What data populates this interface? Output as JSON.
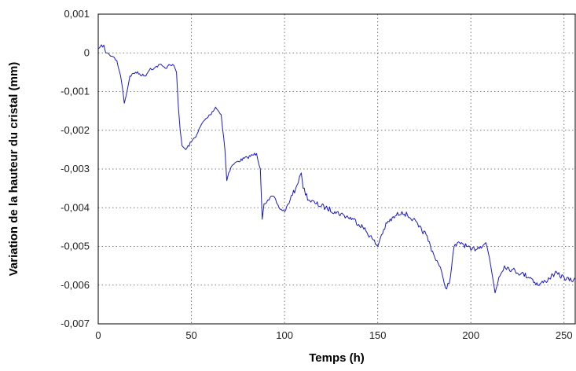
{
  "chart_data": {
    "type": "line",
    "title": "",
    "xlabel": "Temps (h)",
    "ylabel": "Variation de la hauteur du cristal (mm)",
    "xlim": [
      0,
      256
    ],
    "ylim": [
      -0.007,
      0.001
    ],
    "x_ticks": [
      0,
      50,
      100,
      150,
      200,
      250
    ],
    "x_tick_labels": [
      "0",
      "50",
      "100",
      "150",
      "200",
      "250"
    ],
    "y_ticks": [
      0.001,
      0,
      -0.001,
      -0.002,
      -0.003,
      -0.004,
      -0.005,
      -0.006,
      -0.007
    ],
    "y_tick_labels": [
      "0,001",
      "0",
      "-0,001",
      "-0,002",
      "-0,003",
      "-0,004",
      "-0,005",
      "-0,006",
      "-0,007"
    ],
    "grid": true,
    "legend": "none",
    "series": [
      {
        "color": "#1a1acc",
        "x": [
          0,
          1,
          3,
          4,
          6,
          8,
          10,
          12,
          13,
          14,
          15,
          17,
          20,
          25,
          28,
          30,
          33,
          36,
          38,
          40,
          42,
          43,
          44,
          45,
          47,
          50,
          53,
          56,
          60,
          63,
          66,
          68,
          69,
          70,
          72,
          75,
          80,
          85,
          87,
          88,
          89,
          91,
          94,
          97,
          100,
          103,
          106,
          108,
          109,
          110,
          113,
          117,
          122,
          127,
          132,
          137,
          142,
          147,
          150,
          152,
          155,
          160,
          163,
          166,
          169,
          172,
          176,
          180,
          183,
          185,
          187,
          189,
          191,
          195,
          200,
          205,
          208,
          210,
          212,
          213,
          215,
          218,
          222,
          227,
          232,
          236,
          240,
          245,
          250,
          254,
          256
        ],
        "y": [
          0.0001,
          0.00015,
          0.0002,
          0.0,
          -5e-05,
          -0.0001,
          -0.0002,
          -0.0006,
          -0.0009,
          -0.0013,
          -0.0011,
          -0.0006,
          -0.0005,
          -0.0006,
          -0.0004,
          -0.0004,
          -0.0003,
          -0.0004,
          -0.0003,
          -0.0003,
          -0.0005,
          -0.0014,
          -0.002,
          -0.0024,
          -0.0025,
          -0.0023,
          -0.0021,
          -0.0018,
          -0.0016,
          -0.0014,
          -0.0016,
          -0.0025,
          -0.0033,
          -0.0031,
          -0.0029,
          -0.0028,
          -0.0027,
          -0.0026,
          -0.003,
          -0.0043,
          -0.0039,
          -0.0038,
          -0.0037,
          -0.004,
          -0.0041,
          -0.0038,
          -0.0035,
          -0.0032,
          -0.0031,
          -0.0035,
          -0.0038,
          -0.0039,
          -0.004,
          -0.0041,
          -0.0042,
          -0.0043,
          -0.0045,
          -0.0048,
          -0.005,
          -0.0047,
          -0.0044,
          -0.0042,
          -0.0041,
          -0.0042,
          -0.0043,
          -0.0045,
          -0.0047,
          -0.0052,
          -0.0055,
          -0.0058,
          -0.0061,
          -0.0058,
          -0.005,
          -0.0049,
          -0.0051,
          -0.005,
          -0.0049,
          -0.0053,
          -0.0059,
          -0.0062,
          -0.0058,
          -0.0055,
          -0.0056,
          -0.0057,
          -0.0058,
          -0.006,
          -0.0059,
          -0.0057,
          -0.0058,
          -0.0059,
          -0.0058
        ]
      }
    ]
  }
}
